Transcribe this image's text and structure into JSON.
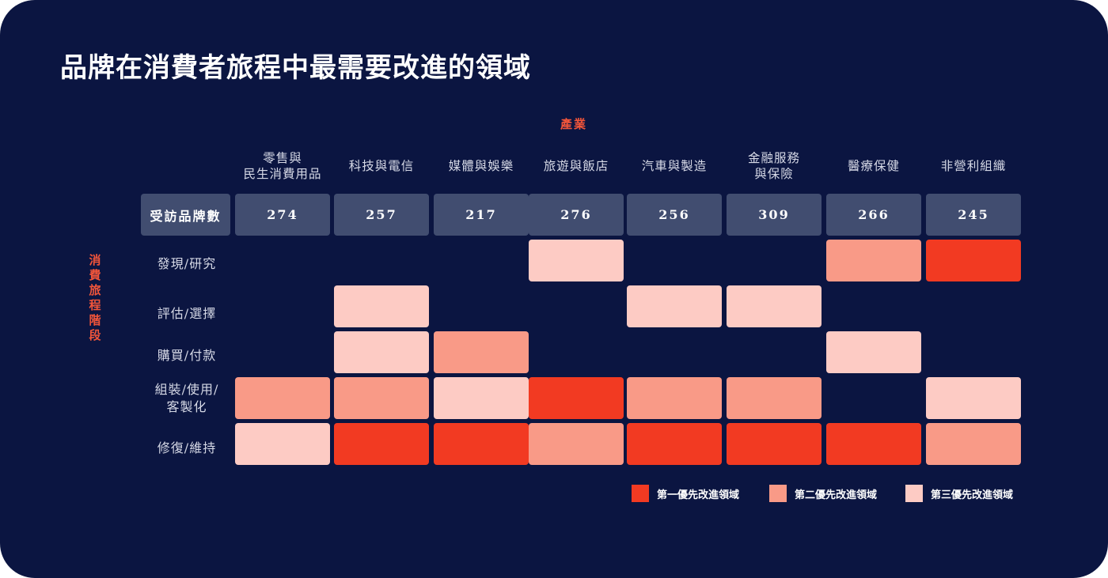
{
  "title": "品牌在消費者旅程中最需要改進的領域",
  "colors": {
    "background": "#0b1541",
    "header_box": "#414d70",
    "priority_1": "#f23a22",
    "priority_2": "#f99a87",
    "priority_3": "#fdcbc4",
    "axis_label": "#f2553a"
  },
  "chart_data": {
    "type": "heatmap",
    "x_axis_label": "產業",
    "y_axis_label": "消費旅程階段",
    "count_row_label": "受訪品牌數",
    "industries": [
      "零售與\n民生消費用品",
      "科技與電信",
      "媒體與娛樂",
      "旅遊與飯店",
      "汽車與製造",
      "金融服務\n與保險",
      "醫療保健",
      "非營利組織"
    ],
    "brand_counts": [
      "274",
      "257",
      "217",
      "276",
      "256",
      "309",
      "266",
      "245"
    ],
    "stages": [
      "發現/研究",
      "評估/選擇",
      "購買/付款",
      "組裝/使用/\n客製化",
      "修復/維持"
    ],
    "priority_matrix": [
      [
        0,
        0,
        0,
        3,
        0,
        0,
        2,
        1
      ],
      [
        0,
        3,
        0,
        0,
        3,
        3,
        0,
        0
      ],
      [
        0,
        3,
        2,
        0,
        0,
        0,
        3,
        0
      ],
      [
        2,
        2,
        3,
        1,
        2,
        2,
        0,
        3
      ],
      [
        3,
        1,
        1,
        2,
        1,
        1,
        1,
        2
      ]
    ],
    "legend": [
      {
        "level": 1,
        "label": "第一優先改進領域"
      },
      {
        "level": 2,
        "label": "第二優先改進領域"
      },
      {
        "level": 3,
        "label": "第三優先改進領域"
      }
    ]
  }
}
